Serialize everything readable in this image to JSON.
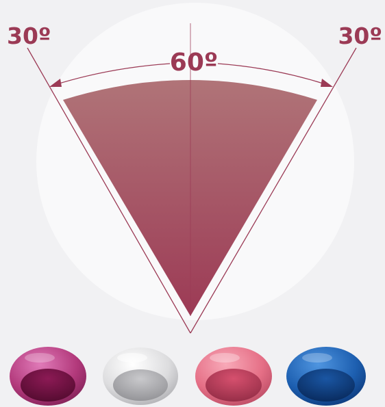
{
  "diagram": {
    "total_angle_label": "60º",
    "left_angle_label": "30º",
    "right_angle_label": "30º"
  },
  "colors": {
    "background": "#f1f1f3",
    "circle": "#f9f9fa",
    "accent": "#9b3a55",
    "wedge_top": "#b07478",
    "wedge_bottom": "#9c3a55"
  },
  "caps": [
    {
      "name": "magenta-cap",
      "color": "#b2397b"
    },
    {
      "name": "white-cap",
      "color": "#dcdcde"
    },
    {
      "name": "pink-cap",
      "color": "#e56f86"
    },
    {
      "name": "blue-cap",
      "color": "#1d5fb0"
    }
  ]
}
